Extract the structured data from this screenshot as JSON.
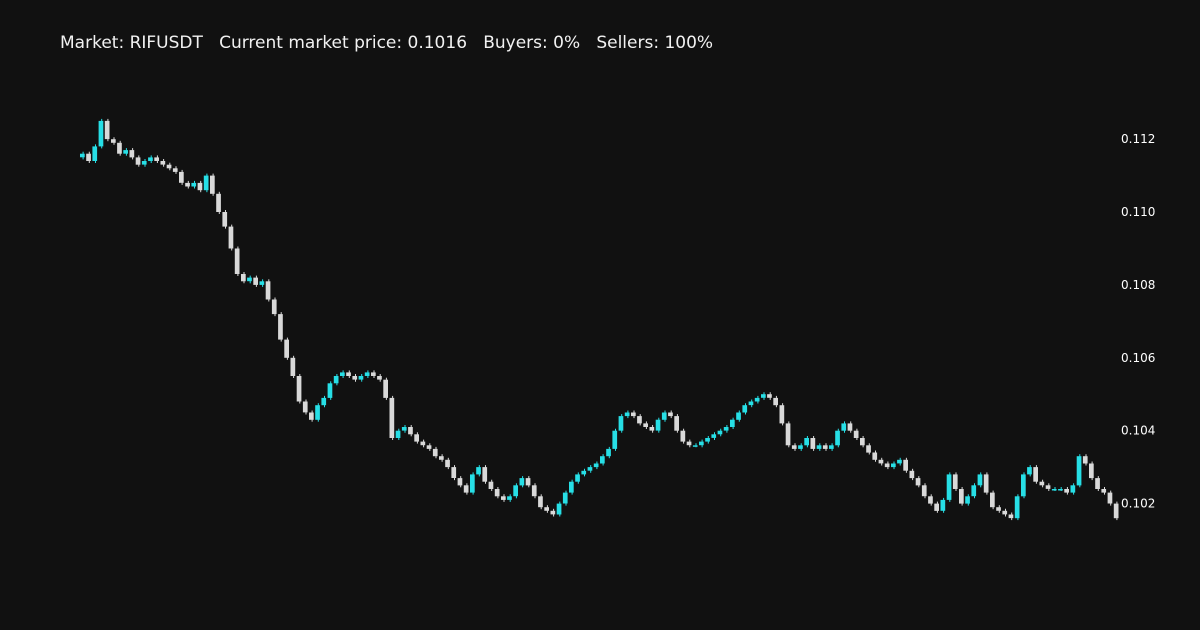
{
  "header": {
    "title": "Market: RIFUSDT   Current market price: 0.1016   Buyers: 0%   Sellers: 100%"
  },
  "colors": {
    "background": "#111111",
    "up": "#27dfe6",
    "down": "#d9d9d9",
    "text": "#ffffff"
  },
  "chart_data": {
    "type": "candlestick",
    "title": "Market: RIFUSDT   Current market price: 0.1016   Buyers: 0%   Sellers: 100%",
    "y_axis_position": "right",
    "ylim": [
      0.101,
      0.1128
    ],
    "yticks": [
      {
        "value": 0.102,
        "label": "0.102"
      },
      {
        "value": 0.104,
        "label": "0.104"
      },
      {
        "value": 0.106,
        "label": "0.106"
      },
      {
        "value": 0.108,
        "label": "0.108"
      },
      {
        "value": 0.11,
        "label": "0.110"
      },
      {
        "value": 0.112,
        "label": "0.112"
      }
    ],
    "grid": false,
    "legend": "none",
    "price_path": [
      0.1115,
      0.1116,
      0.1114,
      0.1118,
      0.1125,
      0.112,
      0.1119,
      0.1116,
      0.1117,
      0.1115,
      0.1113,
      0.1114,
      0.1115,
      0.1114,
      0.1113,
      0.1112,
      0.1111,
      0.1108,
      0.1107,
      0.1108,
      0.1106,
      0.111,
      0.1105,
      0.11,
      0.1096,
      0.109,
      0.1083,
      0.1081,
      0.1082,
      0.108,
      0.1081,
      0.1076,
      0.1072,
      0.1065,
      0.106,
      0.1055,
      0.1048,
      0.1045,
      0.1043,
      0.1047,
      0.1049,
      0.1053,
      0.1055,
      0.1056,
      0.1055,
      0.1054,
      0.1055,
      0.1056,
      0.1055,
      0.1054,
      0.1049,
      0.1038,
      0.104,
      0.1041,
      0.1039,
      0.1037,
      0.1036,
      0.1035,
      0.1033,
      0.1032,
      0.103,
      0.1027,
      0.1025,
      0.1023,
      0.1028,
      0.103,
      0.1026,
      0.1024,
      0.1022,
      0.1021,
      0.1022,
      0.1025,
      0.1027,
      0.1025,
      0.1022,
      0.1019,
      0.1018,
      0.1017,
      0.102,
      0.1023,
      0.1026,
      0.1028,
      0.1029,
      0.103,
      0.1031,
      0.1033,
      0.1035,
      0.104,
      0.1044,
      0.1045,
      0.1044,
      0.1042,
      0.1041,
      0.104,
      0.1043,
      0.1045,
      0.1044,
      0.104,
      0.1037,
      0.1036,
      0.1036,
      0.1037,
      0.1038,
      0.1039,
      0.104,
      0.1041,
      0.1043,
      0.1045,
      0.1047,
      0.1048,
      0.1049,
      0.105,
      0.1049,
      0.1047,
      0.1042,
      0.1036,
      0.1035,
      0.1036,
      0.1038,
      0.1035,
      0.1036,
      0.1035,
      0.1036,
      0.104,
      0.1042,
      0.104,
      0.1038,
      0.1036,
      0.1034,
      0.1032,
      0.1031,
      0.103,
      0.1031,
      0.1032,
      0.1029,
      0.1027,
      0.1025,
      0.1022,
      0.102,
      0.1018,
      0.1021,
      0.1028,
      0.1024,
      0.102,
      0.1022,
      0.1025,
      0.1028,
      0.1023,
      0.1019,
      0.1018,
      0.1017,
      0.1016,
      0.1022,
      0.1028,
      0.103,
      0.1026,
      0.1025,
      0.1024,
      0.1024,
      0.1024,
      0.1023,
      0.1025,
      0.1033,
      0.1031,
      0.1027,
      0.1024,
      0.1023,
      0.102,
      0.1016
    ]
  }
}
